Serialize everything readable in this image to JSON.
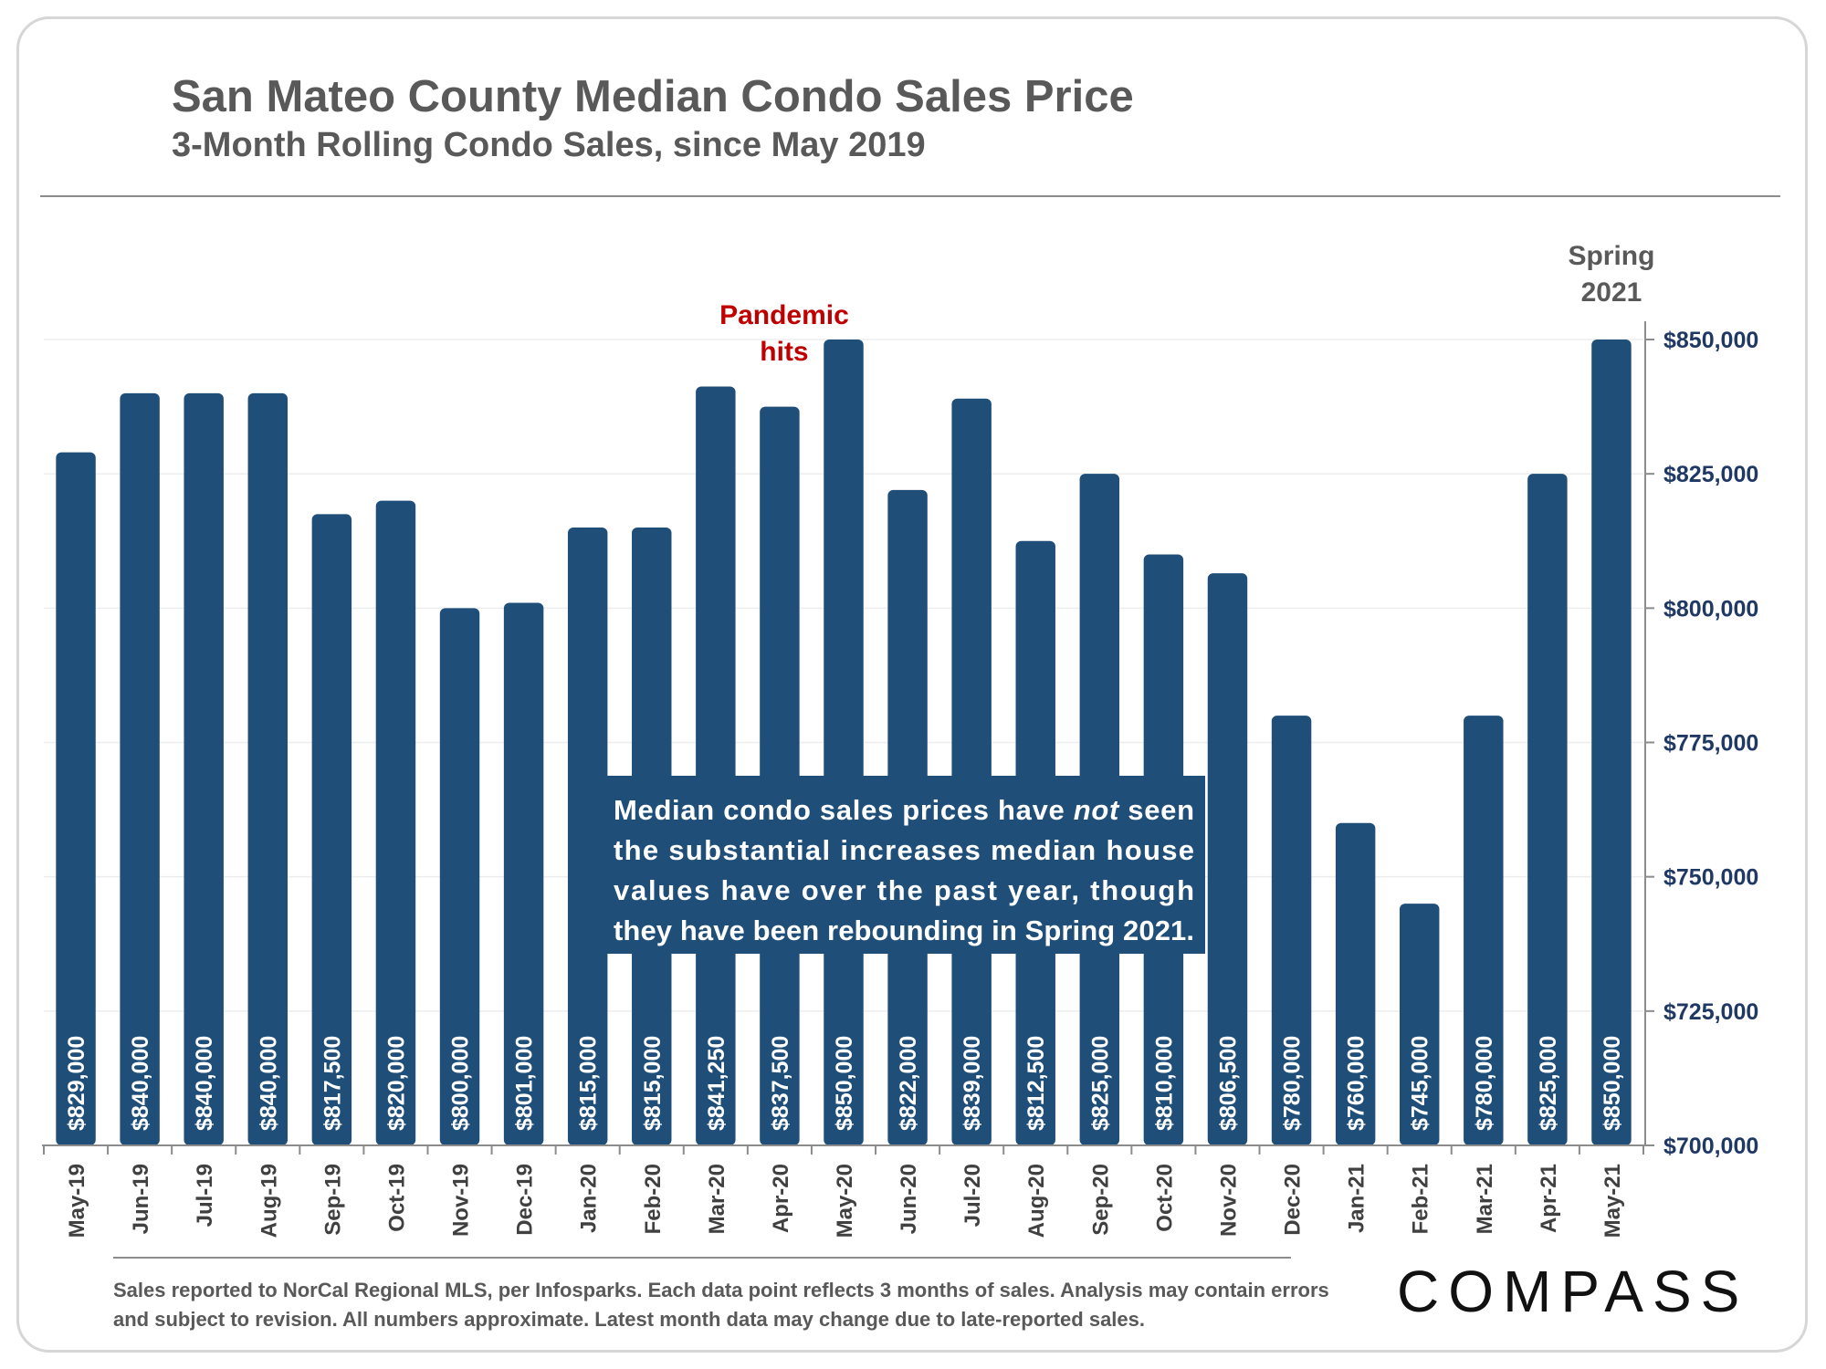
{
  "header": {
    "title": "San Mateo County Median Condo Sales Price",
    "subtitle": "3-Month Rolling Condo Sales, since May 2019"
  },
  "footer": {
    "note": "Sales reported to NorCal Regional MLS, per Infosparks. Each data point reflects 3 months of sales. Analysis may contain errors and subject to revision. All numbers approximate. Latest month data may change due to late-reported sales.",
    "logo": "COMPASS"
  },
  "colors": {
    "bar": "#1f4e79",
    "annotation_red": "#c00000",
    "axis_text": "#1f3864",
    "callout_bg": "#1f4e79"
  },
  "chart_data": {
    "type": "bar",
    "categories": [
      "May-19",
      "Jun-19",
      "Jul-19",
      "Aug-19",
      "Sep-19",
      "Oct-19",
      "Nov-19",
      "Dec-19",
      "Jan-20",
      "Feb-20",
      "Mar-20",
      "Apr-20",
      "May-20",
      "Jun-20",
      "Jul-20",
      "Aug-20",
      "Sep-20",
      "Oct-20",
      "Nov-20",
      "Dec-20",
      "Jan-21",
      "Feb-21",
      "Mar-21",
      "Apr-21",
      "May-21"
    ],
    "values": [
      829000,
      840000,
      840000,
      840000,
      817500,
      820000,
      800000,
      801000,
      815000,
      815000,
      841250,
      837500,
      850000,
      822000,
      839000,
      812500,
      825000,
      810000,
      806500,
      780000,
      760000,
      745000,
      780000,
      825000,
      850000
    ],
    "data_labels": [
      "$829,000",
      "$840,000",
      "$840,000",
      "$840,000",
      "$817,500",
      "$820,000",
      "$800,000",
      "$801,000",
      "$815,000",
      "$815,000",
      "$841,250",
      "$837,500",
      "$850,000",
      "$822,000",
      "$839,000",
      "$812,500",
      "$825,000",
      "$810,000",
      "$806,500",
      "$780,000",
      "$760,000",
      "$745,000",
      "$780,000",
      "$825,000",
      "$850,000"
    ],
    "ylim": [
      700000,
      850000
    ],
    "yticks": [
      700000,
      725000,
      750000,
      775000,
      800000,
      825000,
      850000
    ],
    "ytick_labels": [
      "$700,000",
      "$725,000",
      "$750,000",
      "$775,000",
      "$800,000",
      "$825,000",
      "$850,000"
    ],
    "y_axis_position": "right",
    "grid": true,
    "annotations": [
      {
        "lines": [
          "Pandemic",
          "hits"
        ],
        "category": "Apr-20",
        "color": "red"
      },
      {
        "lines": [
          "Spring",
          "2021"
        ],
        "category": "May-21",
        "color": "gray"
      }
    ],
    "callout": {
      "lines": [
        [
          "Median condo sales prices have ",
          "not",
          " seen"
        ],
        [
          "the substantial increases median house",
          "",
          ""
        ],
        [
          "values have over the past year, though",
          "",
          ""
        ],
        [
          "they have been rebounding in Spring 2021.",
          "",
          ""
        ]
      ]
    }
  }
}
